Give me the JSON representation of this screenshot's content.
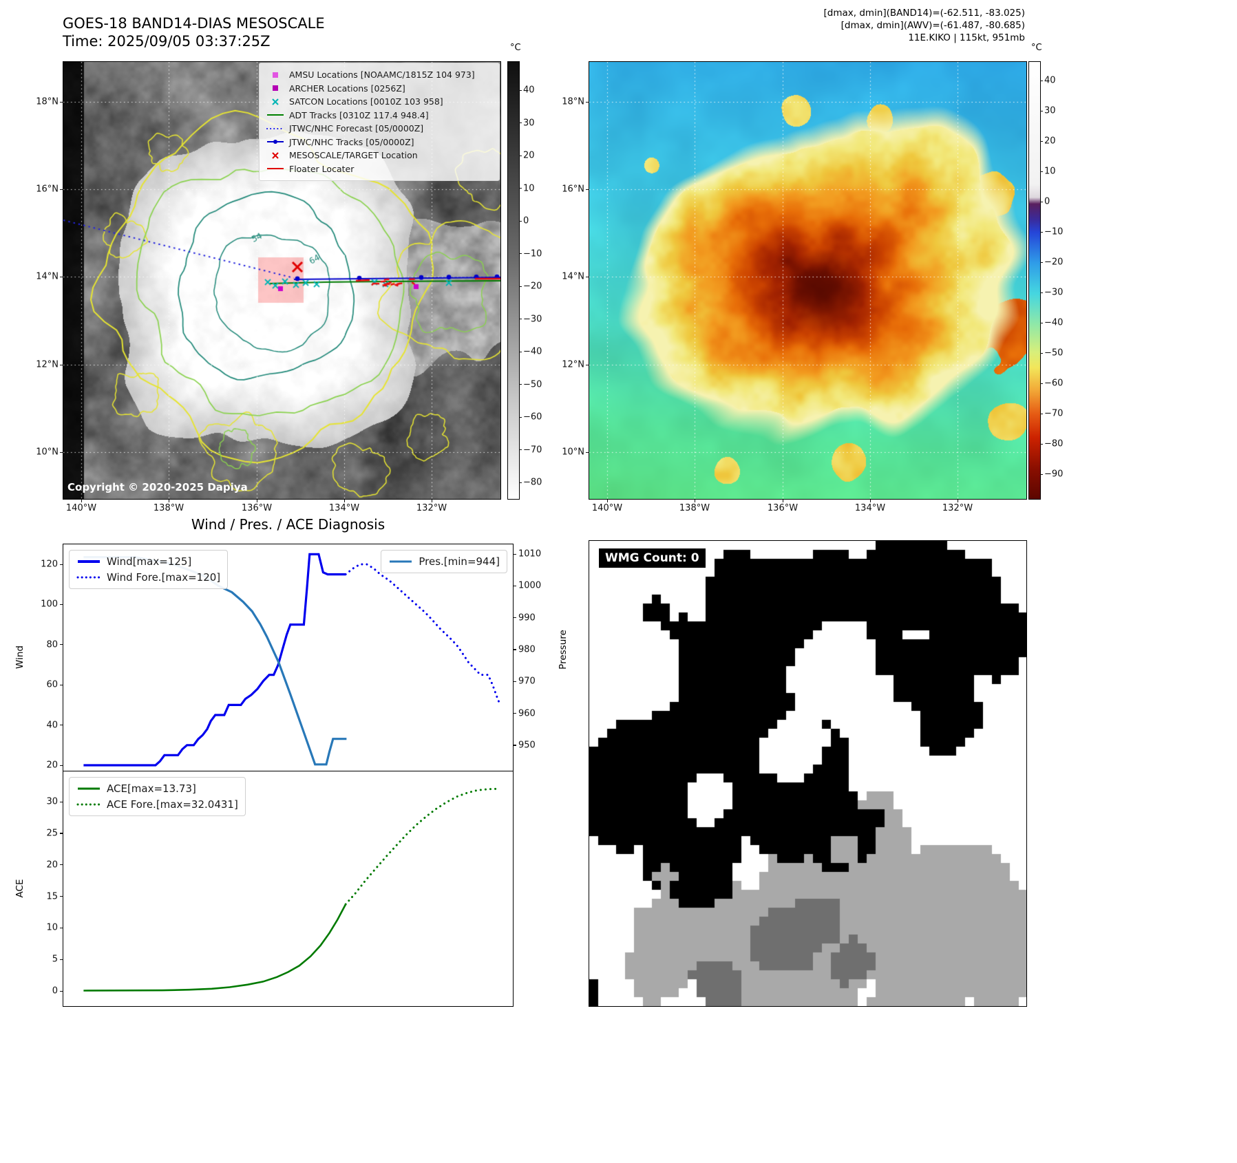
{
  "panel_band14": {
    "title": "GOES-18 BAND14-DIAS MESOSCALE",
    "time_label": "Time: 2025/09/05 03:37:25Z",
    "copyright": "Copyright © 2020-2025 Dapiya",
    "colorbar_unit": "°C",
    "colorbar_ticks": [
      "40",
      "30",
      "20",
      "10",
      "0",
      "−10",
      "−20",
      "−30",
      "−40",
      "−50",
      "−60",
      "−70",
      "−80"
    ],
    "contour_labels": [
      "54",
      "64"
    ],
    "legend": [
      {
        "label": "AMSU Locations [NOAAMC/1815Z 104 973]",
        "marker": "square",
        "color": "#e255e2"
      },
      {
        "label": "ARCHER Locations [0256Z]",
        "marker": "square",
        "color": "#b400b4"
      },
      {
        "label": "SATCON Locations [0010Z 103 958]",
        "marker": "x",
        "color": "#00b4b4"
      },
      {
        "label": "ADT Tracks [0310Z 117.4 948.4]",
        "marker": "line",
        "color": "#008000"
      },
      {
        "label": "JTWC/NHC Forecast [05/0000Z]",
        "marker": "dotted-line",
        "color": "#0000ee"
      },
      {
        "label": "JTWC/NHC Tracks [05/0000Z]",
        "marker": "line-dot",
        "color": "#0000cc"
      },
      {
        "label": "MESOSCALE/TARGET Location",
        "marker": "x",
        "color": "#e00000"
      },
      {
        "label": "Floater Locater",
        "marker": "line",
        "color": "#e00000"
      }
    ]
  },
  "panel_awv": {
    "annotation_line1": "[dmax, dmin](BAND14)=(-62.511, -83.025)",
    "annotation_line2": "[dmax, dmin](AWV)=(-61.487, -80.685)",
    "annotation_line3": "11E.KIKO | 115kt, 951mb",
    "colorbar_unit": "°C",
    "colorbar_ticks": [
      "40",
      "30",
      "20",
      "10",
      "0",
      "−10",
      "−20",
      "−30",
      "−40",
      "−50",
      "−60",
      "−70",
      "−80",
      "−90"
    ]
  },
  "geo": {
    "lat_ticks": [
      "18°N",
      "16°N",
      "14°N",
      "12°N",
      "10°N"
    ],
    "lon_ticks": [
      "140°W",
      "138°W",
      "136°W",
      "134°W",
      "132°W"
    ]
  },
  "diagnosis": {
    "title": "Wind / Pres. / ACE Diagnosis",
    "ylabel_wind": "Wind",
    "ylabel_pressure": "Pressure",
    "ylabel_ace": "ACE",
    "wind_legend": [
      {
        "label": "Wind[max=125]",
        "color": "#0000ee",
        "style": "solid",
        "thick": 4
      },
      {
        "label": "Wind Fore.[max=120]",
        "color": "#0000ee",
        "style": "dotted",
        "thick": 3
      }
    ],
    "pres_legend": [
      {
        "label": "Pres.[min=944]",
        "color": "#2878b8",
        "style": "solid",
        "thick": 3
      }
    ],
    "ace_legend": [
      {
        "label": "ACE[max=13.73]",
        "color": "#007a00",
        "style": "solid",
        "thick": 3
      },
      {
        "label": "ACE Fore.[max=32.0431]",
        "color": "#007a00",
        "style": "dotted",
        "thick": 3
      }
    ]
  },
  "wmg": {
    "count_label": "WMG Count: 0"
  },
  "chart_data": [
    {
      "type": "line",
      "title": "Wind / Pres. / ACE Diagnosis",
      "xlabel": "",
      "x_units": "fraction of time axis (no x tick labels shown)",
      "ylabel_left": "Wind",
      "ylabel_right": "Pressure",
      "ylim_left": [
        15,
        130
      ],
      "ylim_right": [
        940,
        1012
      ],
      "yticks_left": [
        20,
        40,
        60,
        80,
        100,
        120
      ],
      "yticks_right": [
        950,
        960,
        970,
        980,
        990,
        1000,
        1010
      ],
      "series": [
        {
          "name": "Wind[max=125]",
          "axis": "left",
          "style": "solid",
          "color": "#0000ee",
          "points": [
            [
              0.045,
              20
            ],
            [
              0.205,
              20
            ],
            [
              0.215,
              22
            ],
            [
              0.225,
              25
            ],
            [
              0.255,
              25
            ],
            [
              0.265,
              28
            ],
            [
              0.275,
              30
            ],
            [
              0.29,
              30
            ],
            [
              0.3,
              33
            ],
            [
              0.31,
              35
            ],
            [
              0.32,
              38
            ],
            [
              0.328,
              42
            ],
            [
              0.338,
              45
            ],
            [
              0.358,
              45
            ],
            [
              0.368,
              50
            ],
            [
              0.395,
              50
            ],
            [
              0.405,
              53
            ],
            [
              0.418,
              55
            ],
            [
              0.432,
              58
            ],
            [
              0.445,
              62
            ],
            [
              0.458,
              65
            ],
            [
              0.468,
              65
            ],
            [
              0.478,
              70
            ],
            [
              0.488,
              78
            ],
            [
              0.497,
              85
            ],
            [
              0.505,
              90
            ],
            [
              0.535,
              90
            ],
            [
              0.542,
              108
            ],
            [
              0.548,
              125
            ],
            [
              0.568,
              125
            ],
            [
              0.578,
              116
            ],
            [
              0.588,
              115
            ],
            [
              0.628,
              115
            ]
          ]
        },
        {
          "name": "Wind Fore.[max=120]",
          "axis": "left",
          "style": "dotted",
          "color": "#0000ee",
          "points": [
            [
              0.628,
              115
            ],
            [
              0.645,
              118
            ],
            [
              0.66,
              120
            ],
            [
              0.675,
              120
            ],
            [
              0.69,
              118
            ],
            [
              0.705,
              115
            ],
            [
              0.725,
              112
            ],
            [
              0.745,
              108
            ],
            [
              0.765,
              104
            ],
            [
              0.785,
              100
            ],
            [
              0.805,
              96
            ],
            [
              0.822,
              92
            ],
            [
              0.838,
              88
            ],
            [
              0.852,
              85
            ],
            [
              0.866,
              82
            ],
            [
              0.878,
              79
            ],
            [
              0.89,
              75
            ],
            [
              0.902,
              71
            ],
            [
              0.915,
              68
            ],
            [
              0.928,
              65
            ],
            [
              0.945,
              65
            ],
            [
              0.955,
              60
            ],
            [
              0.963,
              55
            ],
            [
              0.97,
              51
            ],
            [
              0.974,
              50
            ]
          ]
        },
        {
          "name": "Pres.[min=944]",
          "axis": "right",
          "style": "solid",
          "color": "#2878b8",
          "points": [
            [
              0.045,
              1009
            ],
            [
              0.16,
              1009
            ],
            [
              0.2,
              1008
            ],
            [
              0.24,
              1007
            ],
            [
              0.28,
              1005
            ],
            [
              0.315,
              1003
            ],
            [
              0.345,
              1000
            ],
            [
              0.375,
              998
            ],
            [
              0.4,
              995
            ],
            [
              0.42,
              992
            ],
            [
              0.438,
              988
            ],
            [
              0.453,
              984
            ],
            [
              0.466,
              980
            ],
            [
              0.479,
              976
            ],
            [
              0.492,
              971
            ],
            [
              0.505,
              966
            ],
            [
              0.52,
              960
            ],
            [
              0.535,
              954
            ],
            [
              0.55,
              948
            ],
            [
              0.56,
              944
            ],
            [
              0.585,
              944
            ],
            [
              0.592,
              948
            ],
            [
              0.6,
              952
            ],
            [
              0.63,
              952
            ]
          ]
        }
      ]
    },
    {
      "type": "line",
      "xlabel": "",
      "x_units": "fraction of time axis (no x tick labels shown)",
      "ylabel_left": "ACE",
      "ylim_left": [
        -2,
        35
      ],
      "yticks_left": [
        0,
        5,
        10,
        15,
        20,
        25,
        30
      ],
      "series": [
        {
          "name": "ACE[max=13.73]",
          "axis": "left",
          "style": "solid",
          "color": "#007a00",
          "points": [
            [
              0.045,
              0.05
            ],
            [
              0.22,
              0.1
            ],
            [
              0.28,
              0.2
            ],
            [
              0.33,
              0.35
            ],
            [
              0.37,
              0.6
            ],
            [
              0.41,
              1.0
            ],
            [
              0.445,
              1.5
            ],
            [
              0.475,
              2.2
            ],
            [
              0.5,
              3.0
            ],
            [
              0.525,
              4.0
            ],
            [
              0.55,
              5.5
            ],
            [
              0.572,
              7.2
            ],
            [
              0.592,
              9.2
            ],
            [
              0.61,
              11.3
            ],
            [
              0.628,
              13.73
            ]
          ]
        },
        {
          "name": "ACE Fore.[max=32.0431]",
          "axis": "left",
          "style": "dotted",
          "color": "#007a00",
          "points": [
            [
              0.628,
              13.73
            ],
            [
              0.65,
              15.5
            ],
            [
              0.672,
              17.5
            ],
            [
              0.695,
              19.4
            ],
            [
              0.718,
              21.3
            ],
            [
              0.74,
              23.0
            ],
            [
              0.762,
              24.7
            ],
            [
              0.785,
              26.3
            ],
            [
              0.808,
              27.7
            ],
            [
              0.83,
              28.9
            ],
            [
              0.852,
              29.9
            ],
            [
              0.875,
              30.8
            ],
            [
              0.898,
              31.4
            ],
            [
              0.92,
              31.8
            ],
            [
              0.945,
              32.0
            ],
            [
              0.965,
              32.04
            ]
          ]
        }
      ]
    }
  ]
}
